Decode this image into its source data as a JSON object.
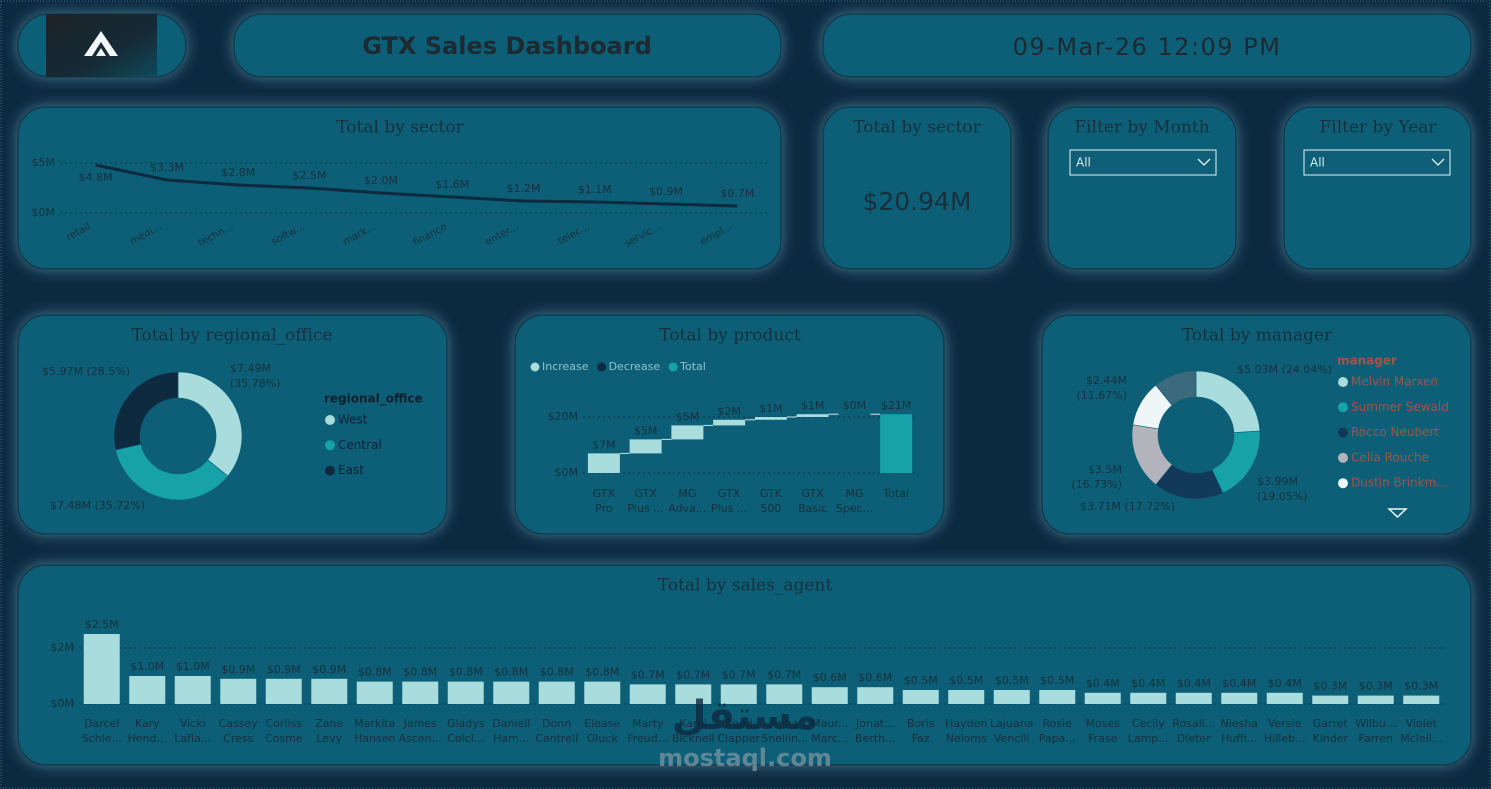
{
  "header": {
    "title": "GTX Sales Dashboard",
    "datetime": "09-Mar-26 12:09 PM"
  },
  "card": {
    "title": "Total by sector",
    "value": "$20.94M"
  },
  "filters": [
    {
      "title": "Filter by Month",
      "selected": "All"
    },
    {
      "title": "Filter by Year",
      "selected": "All"
    }
  ],
  "chart_data": [
    {
      "type": "line",
      "title": "Total by sector",
      "categories": [
        "retail",
        "medi...",
        "techn...",
        "softw...",
        "mark...",
        "finance",
        "enter...",
        "telec...",
        "servic...",
        "empl..."
      ],
      "values": [
        4.8,
        3.3,
        2.8,
        2.5,
        2.0,
        1.6,
        1.2,
        1.1,
        0.9,
        0.7
      ],
      "value_labels": [
        "$4.8M",
        "$3.3M",
        "$2.8M",
        "$2.5M",
        "$2.0M",
        "$1.6M",
        "$1.2M",
        "$1.1M",
        "$0.9M",
        "$0.7M"
      ],
      "color": "#0d2a3f",
      "ylim": [
        0,
        5
      ],
      "yticks": [
        {
          "value": 0,
          "label": "$0M"
        },
        {
          "value": 5,
          "label": "$5M"
        }
      ],
      "grid": true
    },
    {
      "type": "donut",
      "title": "Total by regional_office",
      "legend_title": "regional_office",
      "categories": [
        "West",
        "Central",
        "East"
      ],
      "values": [
        7.49,
        7.48,
        5.97
      ],
      "value_labels": [
        "$7.49M (35.78%)",
        "$7.48M (35.72%)",
        "$5.97M (28.5%)"
      ],
      "colors": [
        "#a9dcdc",
        "#16a2a8",
        "#0d2a3f"
      ]
    },
    {
      "type": "waterfall",
      "title": "Total by product",
      "legend": [
        {
          "name": "Increase",
          "color": "#a9dcdc"
        },
        {
          "name": "Decrease",
          "color": "#0d2a3f"
        },
        {
          "name": "Total",
          "color": "#16a2a8"
        }
      ],
      "categories": [
        "GTX Pro",
        "GTX Plus ...",
        "MG Adva...",
        "GTX Plus ...",
        "GTK 500",
        "GTX Basic",
        "MG Spec...",
        "Total"
      ],
      "values": [
        7,
        5,
        5,
        2,
        1,
        1,
        0,
        21
      ],
      "value_labels": [
        "$7M",
        "$5M",
        "$5M",
        "$2M",
        "$1M",
        "$1M",
        "$0M",
        "$21M"
      ],
      "ylim": [
        0,
        22
      ],
      "yticks": [
        {
          "value": 0,
          "label": "$0M"
        },
        {
          "value": 20,
          "label": "$20M"
        }
      ],
      "grid": true
    },
    {
      "type": "donut",
      "title": "Total by manager",
      "legend_title": "manager",
      "categories": [
        "Melvin Marxen",
        "Summer Sewald",
        "Rocco Neubert",
        "Celia Rouche",
        "Dustin Brinkm...",
        null
      ],
      "values": [
        5.03,
        3.99,
        3.71,
        3.5,
        2.44,
        2.26
      ],
      "value_labels": [
        "$5.03M (24.04%)",
        "$3.99M (19.05%)",
        "$3.71M (17.72%)",
        "$3.5M (16.73%)",
        "$2.44M (11.67%)",
        null
      ],
      "colors": [
        "#a9dcdc",
        "#16a2a8",
        "#12395a",
        "#b3b3bb",
        "#eef6f8",
        "#3b6a7c"
      ]
    },
    {
      "type": "bar",
      "title": "Total by sales_agent",
      "categories": [
        "Darcel Schle...",
        "Kary Hend...",
        "Vicki Lafla...",
        "Cassey Cress",
        "Corliss Cosme",
        "Zane Levy",
        "Markita Hansen",
        "James Ascen...",
        "Gladys Colcl...",
        "Daniell Ham...",
        "Donn Cantrell",
        "Elease Gluck",
        "Marty Freud...",
        "Kami Bicknell",
        "Reed Clapper",
        "Anna Snellin...",
        "Maur... Marc...",
        "Jonat... Berth...",
        "Boris Faz",
        "Hayden Neloms",
        "Lajuana Vencill",
        "Rosie Papa...",
        "Moses Frase",
        "Cecily Lamp...",
        "Rosali... Dieter",
        "Niesha Huffi...",
        "Versie Hilleb...",
        "Garret Kinder",
        "Wilbu... Farren",
        "Violet Mclell..."
      ],
      "values": [
        2.5,
        1.0,
        1.0,
        0.9,
        0.9,
        0.9,
        0.8,
        0.8,
        0.8,
        0.8,
        0.8,
        0.8,
        0.7,
        0.7,
        0.7,
        0.7,
        0.6,
        0.6,
        0.5,
        0.5,
        0.5,
        0.5,
        0.4,
        0.4,
        0.4,
        0.4,
        0.4,
        0.3,
        0.3,
        0.3
      ],
      "value_labels": [
        "$2.5M",
        "$1.0M",
        "$1.0M",
        "$0.9M",
        "$0.9M",
        "$0.9M",
        "$0.8M",
        "$0.8M",
        "$0.8M",
        "$0.8M",
        "$0.8M",
        "$0.8M",
        "$0.7M",
        "$0.7M",
        "$0.7M",
        "$0.7M",
        "$0.6M",
        "$0.6M",
        "$0.5M",
        "$0.5M",
        "$0.5M",
        "$0.5M",
        "$0.4M",
        "$0.4M",
        "$0.4M",
        "$0.4M",
        "$0.4M",
        "$0.3M",
        "$0.3M",
        "$0.3M"
      ],
      "color": "#a9dcdc",
      "ylim": [
        0,
        3.2
      ],
      "yticks": [
        {
          "value": 0,
          "label": "$0M"
        },
        {
          "value": 2,
          "label": "$2M"
        }
      ],
      "grid": true
    }
  ],
  "watermark": {
    "brand": "مستقل",
    "url": "mostaql.com"
  }
}
